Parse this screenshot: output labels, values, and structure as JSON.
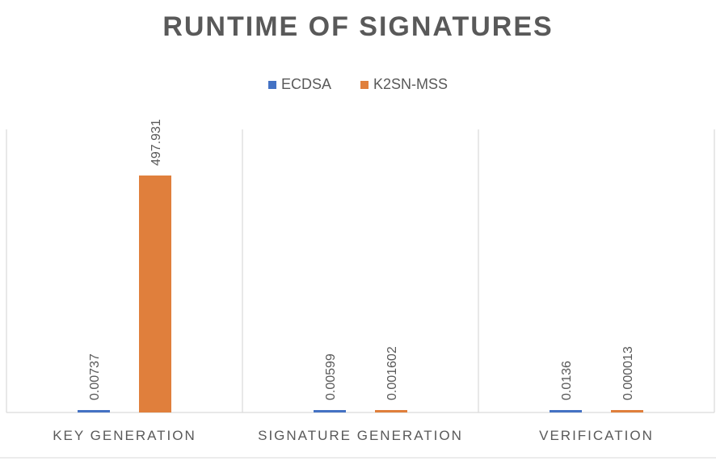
{
  "chart_data": {
    "type": "bar",
    "title": "RUNTIME OF SIGNATURES",
    "categories": [
      "KEY GENERATION",
      "SIGNATURE GENERATION",
      "VERIFICATION"
    ],
    "series": [
      {
        "name": "ECDSA",
        "color": "#4472C4",
        "values": [
          0.00737,
          0.00599,
          0.0136
        ],
        "labels": [
          "0.00737",
          "0.00599",
          "0.0136"
        ]
      },
      {
        "name": "K2SN-MSS",
        "color": "#E07F3C",
        "values": [
          497.931,
          0.001602,
          1.3e-05
        ],
        "labels": [
          "497.931",
          "0.001602",
          "0.000013"
        ]
      }
    ],
    "ylim": [
      0,
      600
    ],
    "grid": false,
    "legend_position": "top"
  }
}
